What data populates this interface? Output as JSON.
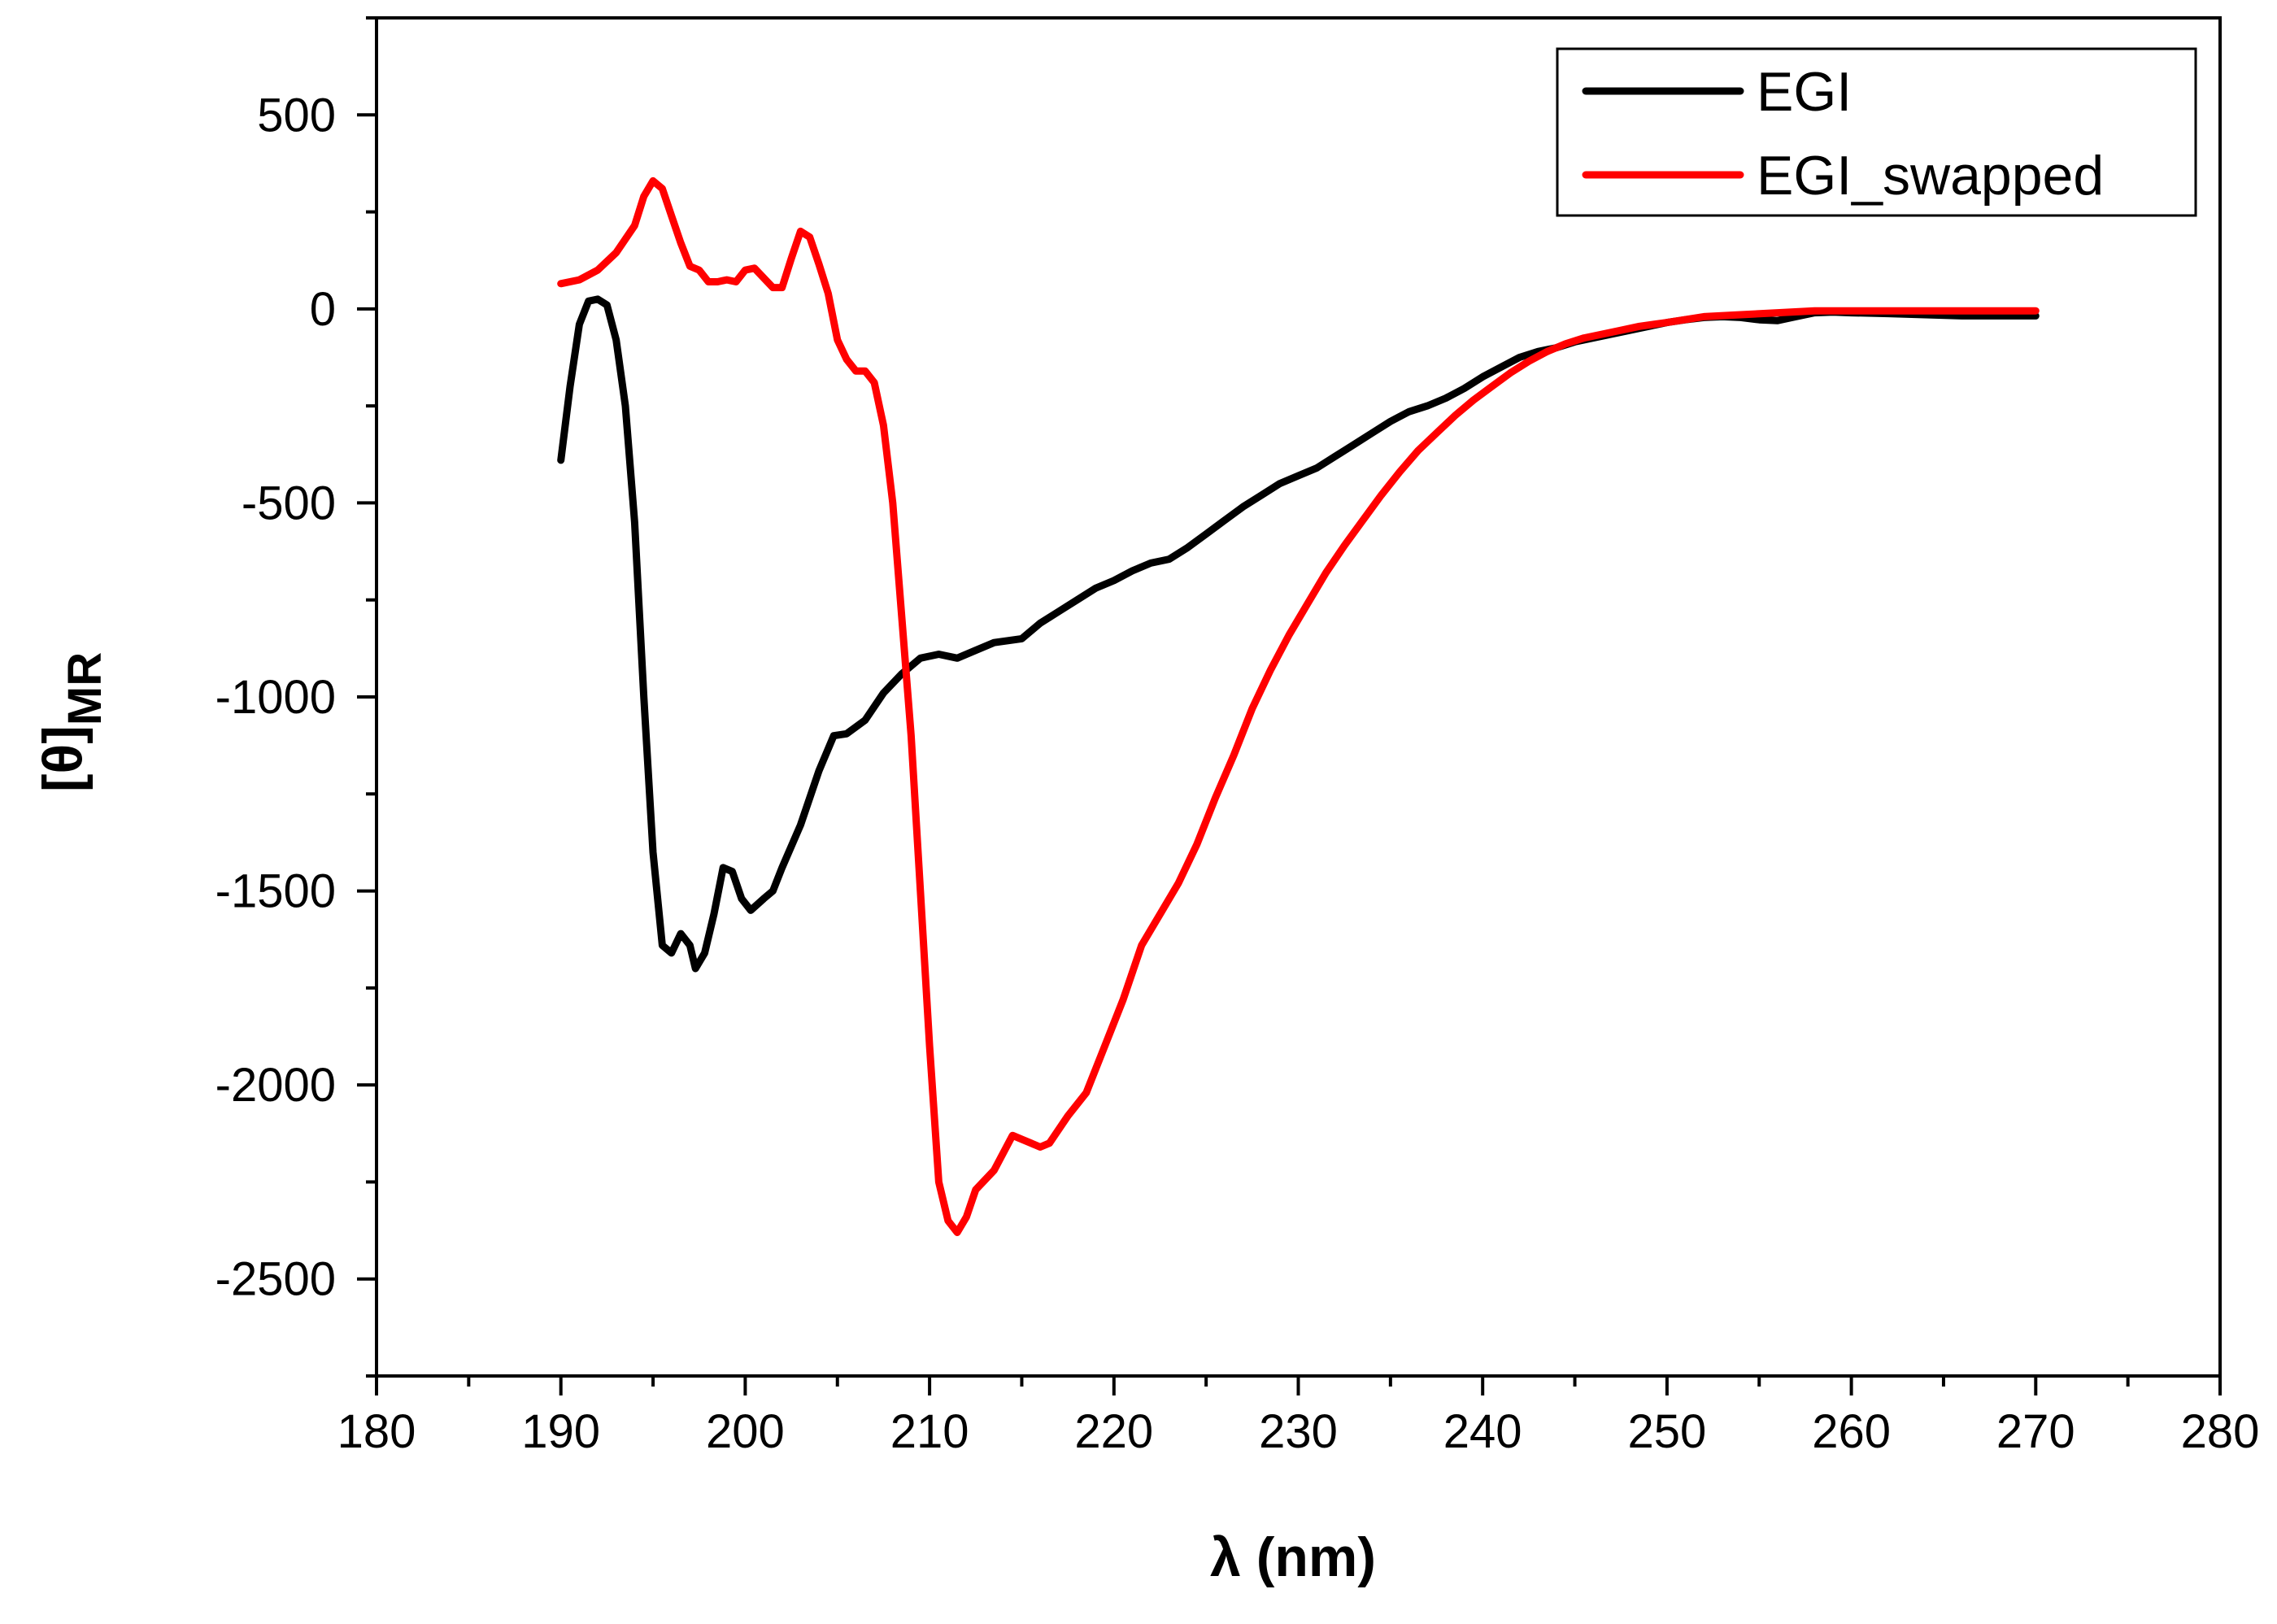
{
  "chart_data": {
    "type": "line",
    "title": "",
    "xlabel": "λ (nm)",
    "ylabel": "[θ]",
    "ylabel_subscript": "MR",
    "xlim": [
      180,
      280
    ],
    "ylim": [
      -2750,
      750
    ],
    "x_ticks": [
      180,
      190,
      200,
      210,
      220,
      230,
      240,
      250,
      260,
      270,
      280
    ],
    "y_ticks": [
      -2500,
      -2000,
      -1500,
      -1000,
      -500,
      0,
      500
    ],
    "legend_position": "top-right",
    "series": [
      {
        "name": "EGI",
        "color": "#000000",
        "points": [
          [
            190,
            -390
          ],
          [
            190.5,
            -200
          ],
          [
            191,
            -40
          ],
          [
            191.5,
            20
          ],
          [
            192,
            25
          ],
          [
            192.5,
            10
          ],
          [
            193,
            -80
          ],
          [
            193.5,
            -250
          ],
          [
            194,
            -550
          ],
          [
            194.5,
            -1000
          ],
          [
            195,
            -1400
          ],
          [
            195.5,
            -1640
          ],
          [
            196,
            -1660
          ],
          [
            196.5,
            -1610
          ],
          [
            197,
            -1640
          ],
          [
            197.3,
            -1700
          ],
          [
            197.8,
            -1660
          ],
          [
            198.3,
            -1560
          ],
          [
            198.8,
            -1440
          ],
          [
            199.3,
            -1450
          ],
          [
            199.8,
            -1520
          ],
          [
            200.3,
            -1550
          ],
          [
            201,
            -1520
          ],
          [
            201.5,
            -1500
          ],
          [
            202,
            -1440
          ],
          [
            203,
            -1330
          ],
          [
            204,
            -1190
          ],
          [
            204.8,
            -1100
          ],
          [
            205.5,
            -1095
          ],
          [
            206.5,
            -1060
          ],
          [
            207.5,
            -990
          ],
          [
            208.5,
            -940
          ],
          [
            209.5,
            -900
          ],
          [
            210.5,
            -890
          ],
          [
            211.5,
            -900
          ],
          [
            212.5,
            -880
          ],
          [
            213.5,
            -860
          ],
          [
            215,
            -850
          ],
          [
            216,
            -810
          ],
          [
            217,
            -780
          ],
          [
            218,
            -750
          ],
          [
            219,
            -720
          ],
          [
            220,
            -700
          ],
          [
            221,
            -675
          ],
          [
            222,
            -655
          ],
          [
            223,
            -645
          ],
          [
            224,
            -615
          ],
          [
            225,
            -580
          ],
          [
            226,
            -545
          ],
          [
            227,
            -510
          ],
          [
            228,
            -480
          ],
          [
            229,
            -450
          ],
          [
            230,
            -430
          ],
          [
            231,
            -410
          ],
          [
            232,
            -380
          ],
          [
            233,
            -350
          ],
          [
            234,
            -320
          ],
          [
            235,
            -290
          ],
          [
            236,
            -265
          ],
          [
            237,
            -250
          ],
          [
            238,
            -230
          ],
          [
            239,
            -205
          ],
          [
            240,
            -175
          ],
          [
            241,
            -150
          ],
          [
            242,
            -125
          ],
          [
            243,
            -110
          ],
          [
            244,
            -100
          ],
          [
            245,
            -85
          ],
          [
            246,
            -75
          ],
          [
            247,
            -65
          ],
          [
            248,
            -55
          ],
          [
            249,
            -45
          ],
          [
            250,
            -35
          ],
          [
            251,
            -28
          ],
          [
            252,
            -22
          ],
          [
            253,
            -20
          ],
          [
            254,
            -22
          ],
          [
            255,
            -28
          ],
          [
            256,
            -30
          ],
          [
            257,
            -20
          ],
          [
            258,
            -10
          ],
          [
            259,
            -8
          ],
          [
            260,
            -10
          ],
          [
            262,
            -12
          ],
          [
            264,
            -15
          ],
          [
            266,
            -18
          ],
          [
            268,
            -18
          ],
          [
            270,
            -18
          ]
        ]
      },
      {
        "name": "EGI_swapped",
        "color": "#ff0000",
        "points": [
          [
            190,
            65
          ],
          [
            191,
            75
          ],
          [
            192,
            100
          ],
          [
            193,
            145
          ],
          [
            194,
            215
          ],
          [
            194.5,
            290
          ],
          [
            195,
            330
          ],
          [
            195.5,
            310
          ],
          [
            196,
            240
          ],
          [
            196.5,
            170
          ],
          [
            197,
            110
          ],
          [
            197.5,
            100
          ],
          [
            198,
            70
          ],
          [
            198.5,
            70
          ],
          [
            199,
            75
          ],
          [
            199.5,
            70
          ],
          [
            200,
            100
          ],
          [
            200.5,
            105
          ],
          [
            201,
            80
          ],
          [
            201.5,
            55
          ],
          [
            202,
            55
          ],
          [
            202.5,
            130
          ],
          [
            203,
            200
          ],
          [
            203.5,
            185
          ],
          [
            204,
            115
          ],
          [
            204.5,
            40
          ],
          [
            205,
            -80
          ],
          [
            205.5,
            -130
          ],
          [
            206,
            -160
          ],
          [
            206.5,
            -160
          ],
          [
            207,
            -190
          ],
          [
            207.5,
            -300
          ],
          [
            208,
            -500
          ],
          [
            208.5,
            -800
          ],
          [
            209,
            -1100
          ],
          [
            209.5,
            -1500
          ],
          [
            210,
            -1900
          ],
          [
            210.5,
            -2250
          ],
          [
            211,
            -2350
          ],
          [
            211.5,
            -2380
          ],
          [
            212,
            -2340
          ],
          [
            212.5,
            -2270
          ],
          [
            213.5,
            -2220
          ],
          [
            214.5,
            -2130
          ],
          [
            215.5,
            -2150
          ],
          [
            216,
            -2160
          ],
          [
            216.5,
            -2150
          ],
          [
            217.5,
            -2080
          ],
          [
            218.5,
            -2020
          ],
          [
            219.5,
            -1900
          ],
          [
            220.5,
            -1780
          ],
          [
            221.5,
            -1640
          ],
          [
            222.5,
            -1560
          ],
          [
            223.5,
            -1480
          ],
          [
            224.5,
            -1380
          ],
          [
            225.5,
            -1260
          ],
          [
            226.5,
            -1150
          ],
          [
            227.5,
            -1030
          ],
          [
            228.5,
            -930
          ],
          [
            229.5,
            -840
          ],
          [
            230.5,
            -760
          ],
          [
            231.5,
            -680
          ],
          [
            232.5,
            -610
          ],
          [
            233.5,
            -545
          ],
          [
            234.5,
            -480
          ],
          [
            235.5,
            -420
          ],
          [
            236.5,
            -365
          ],
          [
            237.5,
            -320
          ],
          [
            238.5,
            -275
          ],
          [
            239.5,
            -235
          ],
          [
            240.5,
            -200
          ],
          [
            241.5,
            -165
          ],
          [
            242.5,
            -135
          ],
          [
            243.5,
            -110
          ],
          [
            244.5,
            -90
          ],
          [
            245.5,
            -75
          ],
          [
            246.5,
            -65
          ],
          [
            247.5,
            -55
          ],
          [
            248.5,
            -45
          ],
          [
            250,
            -35
          ],
          [
            252,
            -20
          ],
          [
            254,
            -15
          ],
          [
            256,
            -10
          ],
          [
            258,
            -5
          ],
          [
            260,
            -5
          ],
          [
            264,
            -5
          ],
          [
            268,
            -5
          ],
          [
            270,
            -5
          ]
        ]
      }
    ]
  }
}
